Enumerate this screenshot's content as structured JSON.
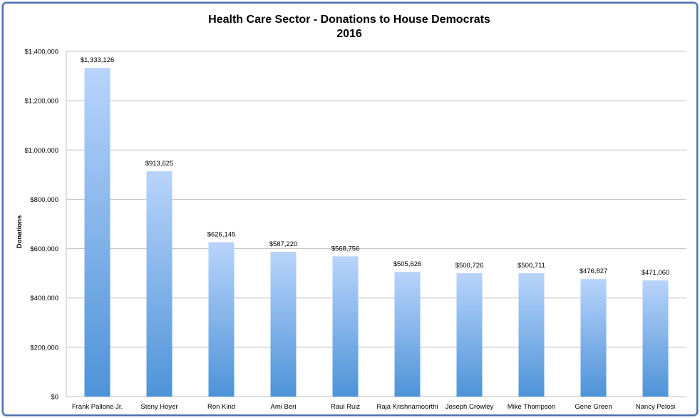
{
  "chart_data": {
    "type": "bar",
    "title": "Health Care Sector - Donations to House Democrats",
    "subtitle": "2016",
    "ylabel": "Donations",
    "ylim": [
      0,
      1400000
    ],
    "yticks": [
      "$0",
      "$200,000",
      "$400,000",
      "$600,000",
      "$800,000",
      "$1,000,000",
      "$1,200,000",
      "$1,400,000"
    ],
    "grid": true,
    "categories": [
      "Frank Pallone Jr.",
      "Steny Hoyer",
      "Ron Kind",
      "Ami Beri",
      "Raul Ruiz",
      "Raja Krishnamoorthi",
      "Joseph Crowley",
      "Mike Thompson",
      "Gene Green",
      "Nancy Pelosi"
    ],
    "values": [
      1333126,
      913625,
      626145,
      587220,
      568756,
      505626,
      500726,
      500711,
      476827,
      471060
    ],
    "value_labels": [
      "$1,333,126",
      "$913,625",
      "$626,145",
      "$587,220",
      "$568,756",
      "$505,626",
      "$500,726",
      "$500,711",
      "$476,827",
      "$471,060"
    ],
    "colors": {
      "bar_top": "#b8d4fb",
      "bar_bottom": "#4e93d8",
      "grid": "#bfbfbf",
      "frame": "#4a6fb0"
    }
  }
}
